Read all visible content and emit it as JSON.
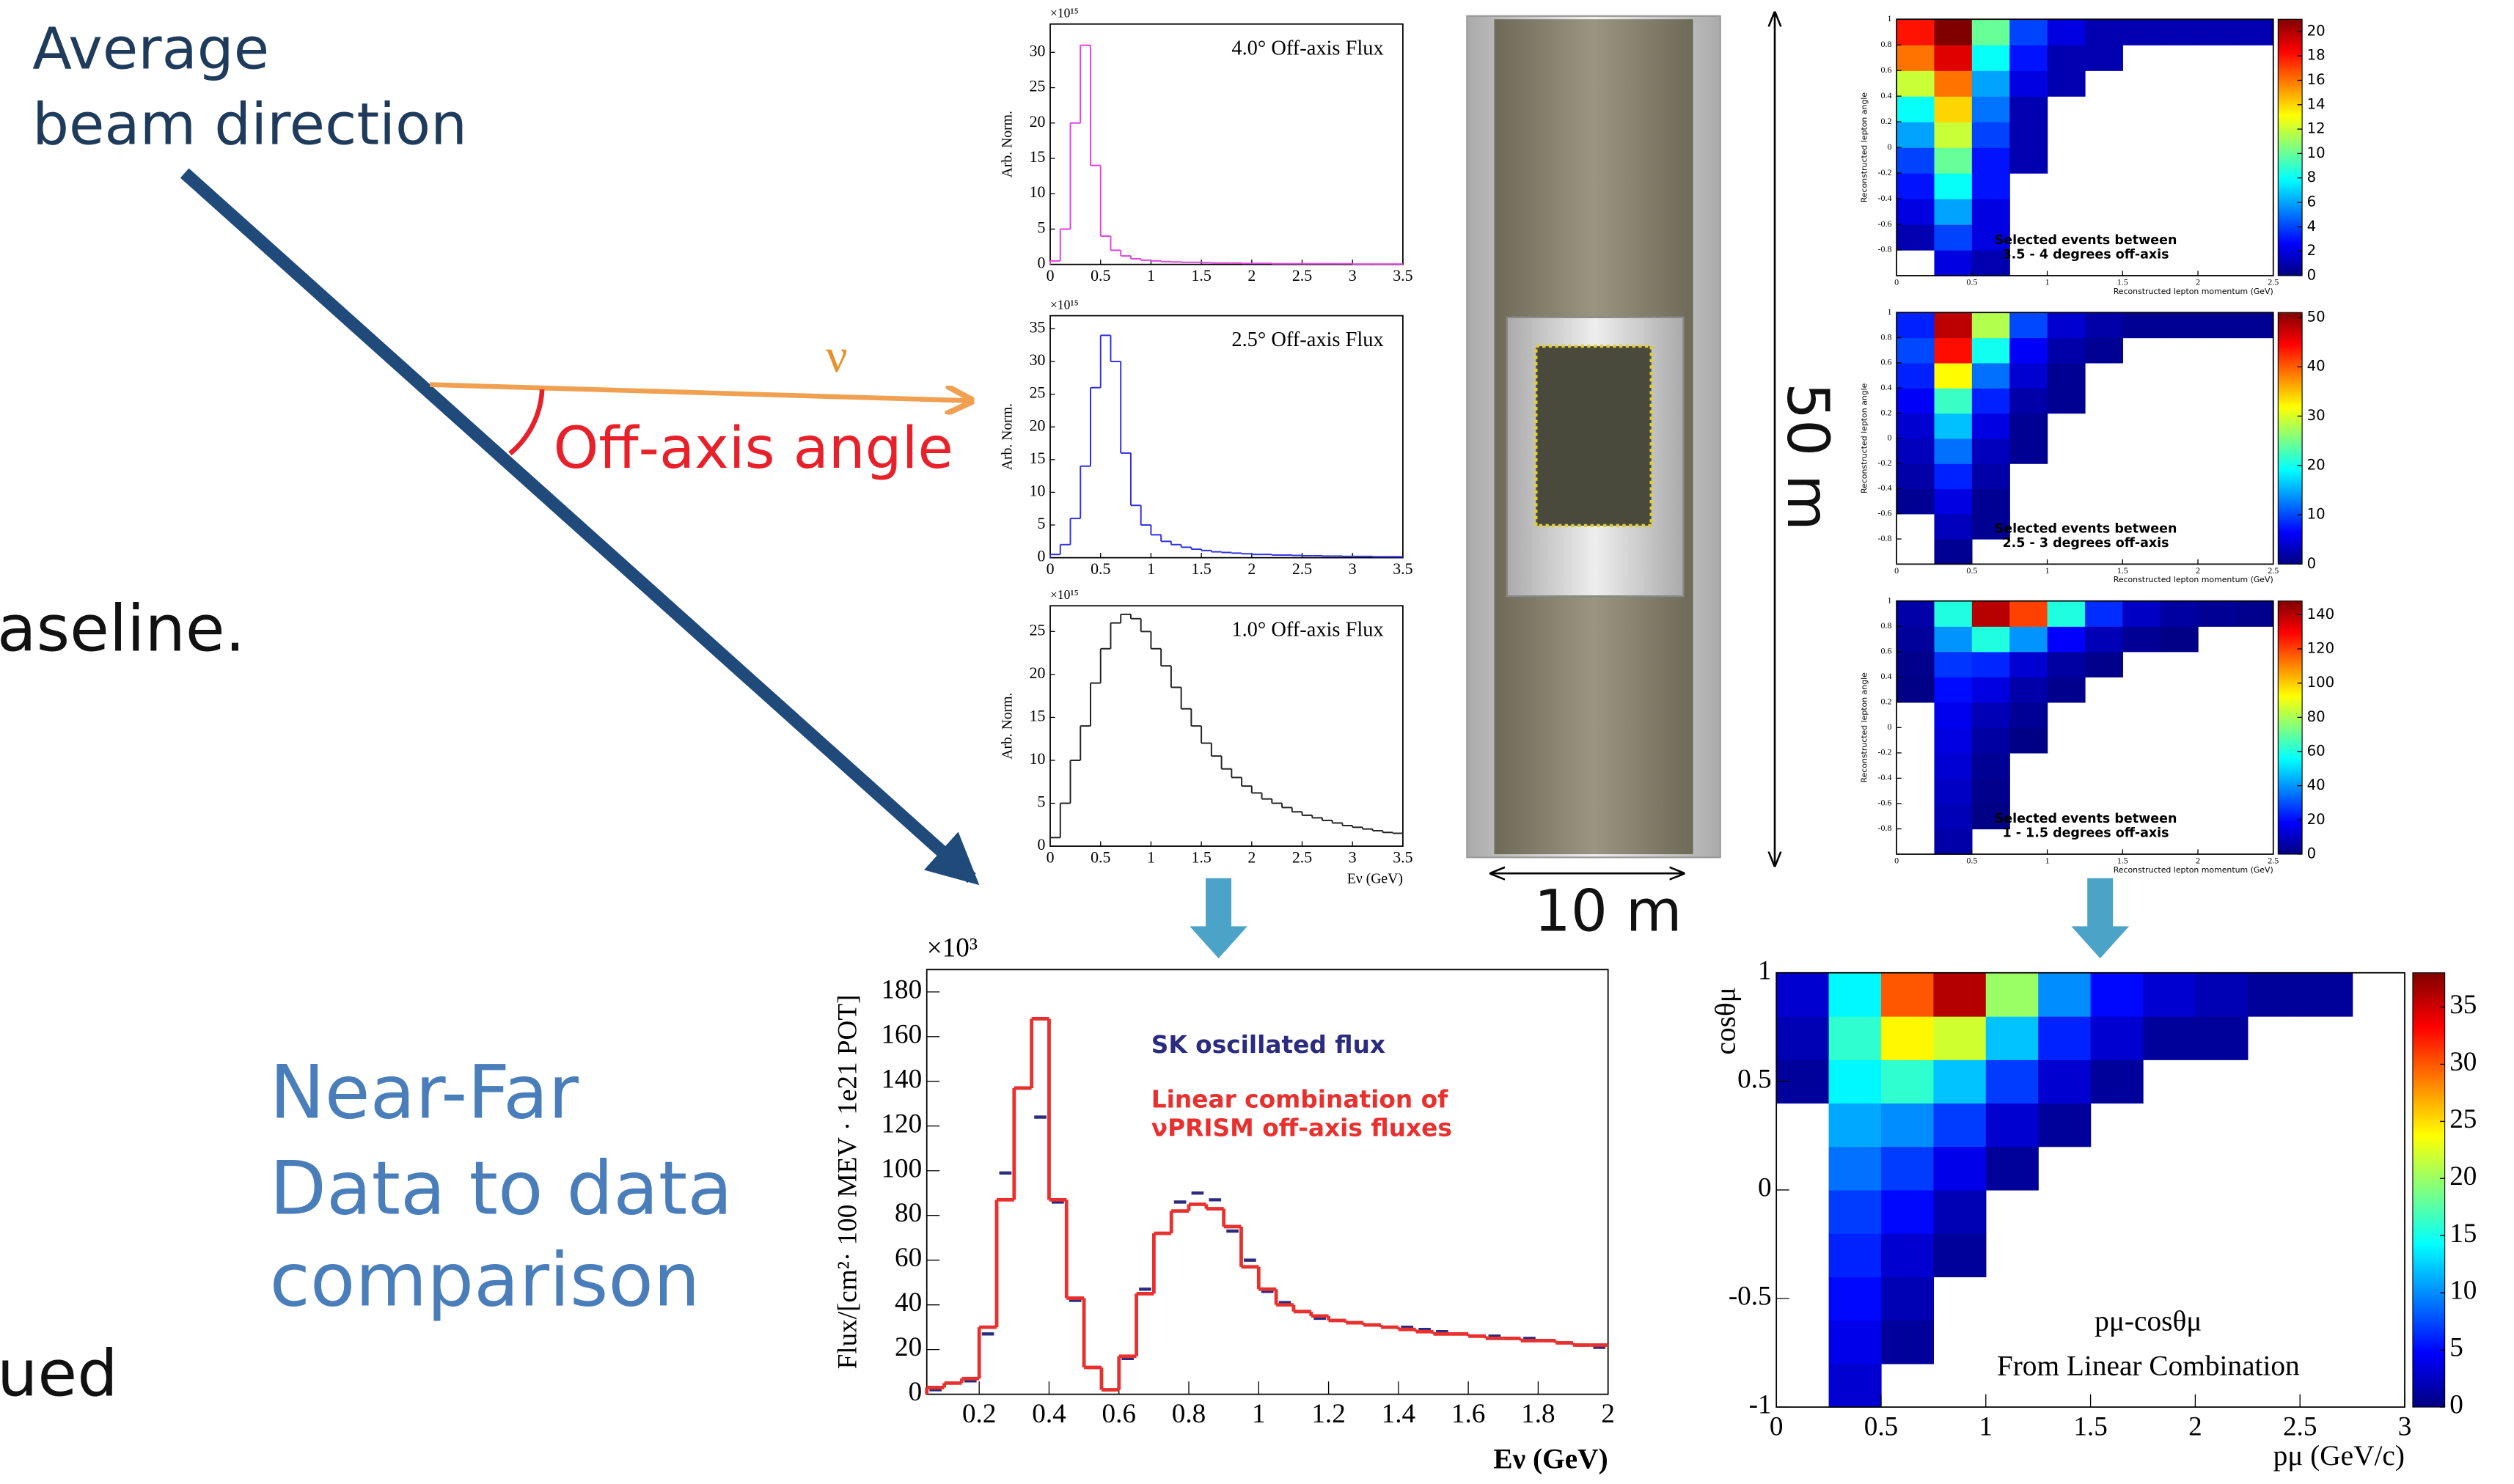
{
  "slide": {
    "beam_1": "Average",
    "beam_2": "beam direction",
    "nu": "ν",
    "angle": "Off-axis angle",
    "cut_1": "aseline.",
    "cut_2": "ued",
    "nearfar_1": "Near-Far",
    "nearfar_2": "Data to data",
    "nearfar_3": "comparison",
    "height": "50 m",
    "width": "10 m"
  },
  "chart_data": [
    {
      "type": "histogram",
      "multiplier": "×10¹⁵",
      "annotation": "4.0° Off-axis Flux",
      "y_label": "Arb. Norm.",
      "bins": [
        0,
        0.1,
        0.2,
        0.3,
        0.4,
        0.5,
        0.6,
        0.7,
        0.8,
        0.9,
        1,
        1.1,
        1.2,
        1.3,
        1.4,
        1.5,
        1.6,
        1.7,
        1.8,
        1.9,
        2,
        2.1,
        2.2,
        2.3,
        2.4,
        2.5,
        2.6,
        2.7,
        2.8,
        2.9,
        3,
        3.1,
        3.2,
        3.3,
        3.4,
        3.5
      ],
      "series": [
        {
          "style": "step",
          "color": "#e040e0",
          "values": [
            0.5,
            5,
            20,
            31,
            14,
            4,
            2,
            1.2,
            0.8,
            0.6,
            0.5,
            0.4,
            0.35,
            0.3,
            0.3,
            0.25,
            0.2,
            0.2,
            0.2,
            0.15,
            0.15,
            0.15,
            0.1,
            0.1,
            0.1,
            0.1,
            0.1,
            0.1,
            0.1,
            0.1,
            0.05,
            0.05,
            0.05,
            0.05,
            0.05
          ]
        }
      ],
      "xlim": [
        0,
        3.5
      ],
      "ylim": [
        0,
        34
      ],
      "xticks": [
        0,
        0.5,
        1,
        1.5,
        2,
        2.5,
        3,
        3.5
      ],
      "yticks": [
        0,
        5,
        10,
        15,
        20,
        25,
        30
      ]
    },
    {
      "type": "histogram",
      "multiplier": "×10¹⁵",
      "annotation": "2.5° Off-axis Flux",
      "y_label": "Arb. Norm.",
      "bins": [
        0,
        0.1,
        0.2,
        0.3,
        0.4,
        0.5,
        0.6,
        0.7,
        0.8,
        0.9,
        1,
        1.1,
        1.2,
        1.3,
        1.4,
        1.5,
        1.6,
        1.7,
        1.8,
        1.9,
        2,
        2.1,
        2.2,
        2.3,
        2.4,
        2.5,
        2.6,
        2.7,
        2.8,
        2.9,
        3,
        3.1,
        3.2,
        3.3,
        3.4,
        3.5
      ],
      "series": [
        {
          "style": "step",
          "color": "#3030e0",
          "values": [
            0.5,
            2,
            6,
            14,
            26,
            34,
            30,
            16,
            8,
            5,
            3.5,
            2.5,
            2,
            1.6,
            1.3,
            1.1,
            0.9,
            0.8,
            0.7,
            0.6,
            0.5,
            0.5,
            0.4,
            0.4,
            0.35,
            0.3,
            0.3,
            0.25,
            0.25,
            0.2,
            0.2,
            0.2,
            0.15,
            0.15,
            0.15
          ]
        }
      ],
      "xlim": [
        0,
        3.5
      ],
      "ylim": [
        0,
        37
      ],
      "xticks": [
        0,
        0.5,
        1,
        1.5,
        2,
        2.5,
        3,
        3.5
      ],
      "yticks": [
        0,
        5,
        10,
        15,
        20,
        25,
        30,
        35
      ]
    },
    {
      "type": "histogram",
      "multiplier": "×10¹⁵",
      "annotation": "1.0° Off-axis Flux",
      "y_label": "Arb. Norm.",
      "x_label": "Eν (GeV)",
      "bins": [
        0,
        0.1,
        0.2,
        0.3,
        0.4,
        0.5,
        0.6,
        0.7,
        0.8,
        0.9,
        1,
        1.1,
        1.2,
        1.3,
        1.4,
        1.5,
        1.6,
        1.7,
        1.8,
        1.9,
        2,
        2.1,
        2.2,
        2.3,
        2.4,
        2.5,
        2.6,
        2.7,
        2.8,
        2.9,
        3,
        3.1,
        3.2,
        3.3,
        3.4,
        3.5
      ],
      "series": [
        {
          "style": "step",
          "color": "#222222",
          "values": [
            1,
            5,
            10,
            14,
            19,
            23,
            26,
            27,
            26.5,
            25,
            23,
            21,
            18.5,
            16,
            14,
            12,
            10.5,
            9,
            8,
            7,
            6.2,
            5.5,
            5,
            4.5,
            4,
            3.6,
            3.3,
            3,
            2.7,
            2.4,
            2.2,
            2,
            1.8,
            1.6,
            1.5
          ]
        }
      ],
      "xlim": [
        0,
        3.5
      ],
      "ylim": [
        0,
        28
      ],
      "xticks": [
        0,
        0.5,
        1,
        1.5,
        2,
        2.5,
        3,
        3.5
      ],
      "yticks": [
        0,
        5,
        10,
        15,
        20,
        25
      ]
    },
    {
      "type": "histogram",
      "multiplier": "×10³",
      "y_label": "Flux/[cm²· 100 MEV · 1e21 POT]",
      "x_label": "Eν (GeV)",
      "bins": [
        0.05,
        0.1,
        0.15,
        0.2,
        0.25,
        0.3,
        0.35,
        0.4,
        0.45,
        0.5,
        0.55,
        0.6,
        0.65,
        0.7,
        0.75,
        0.8,
        0.85,
        0.9,
        0.95,
        1,
        1.05,
        1.1,
        1.15,
        1.2,
        1.25,
        1.3,
        1.35,
        1.4,
        1.45,
        1.5,
        1.55,
        1.6,
        1.65,
        1.7,
        1.75,
        1.8,
        1.85,
        1.9,
        1.95,
        2
      ],
      "series": [
        {
          "name": "SK oscillated flux",
          "style": "marker",
          "color": "#2b2b80",
          "values": [
            2,
            5,
            6,
            27,
            99,
            137,
            124,
            86,
            42,
            12,
            2,
            16,
            47,
            72,
            86,
            90,
            87,
            73,
            60,
            46,
            41,
            37,
            34,
            33,
            32,
            31,
            30,
            30,
            29,
            28,
            27,
            26,
            26,
            25,
            25,
            24,
            23,
            22,
            21
          ]
        },
        {
          "name": "Linear combination of νPRISM off-axis fluxes",
          "style": "step",
          "color": "#e8302e",
          "values": [
            3,
            5,
            7,
            30,
            87,
            137,
            168,
            87,
            43,
            12,
            2,
            17,
            45,
            72,
            82,
            85,
            83,
            75,
            57,
            47,
            40,
            37,
            35,
            33,
            32,
            31,
            30,
            29,
            28,
            27,
            27,
            26,
            25,
            25,
            24,
            24,
            23,
            22,
            22
          ]
        }
      ],
      "xlim": [
        0.05,
        2
      ],
      "ylim": [
        0,
        190
      ],
      "xticks": [
        0.2,
        0.4,
        0.6,
        0.8,
        1,
        1.2,
        1.4,
        1.6,
        1.8,
        2
      ],
      "yticks": [
        0,
        20,
        40,
        60,
        80,
        100,
        120,
        140,
        160,
        180
      ]
    },
    {
      "type": "heatmap",
      "y_label": "cosθμ",
      "x_label": "pμ (GeV/c)",
      "annotations": [
        "pμ-cosθμ",
        "From Linear Combination"
      ],
      "x_bins": [
        0,
        0.25,
        0.5,
        0.75,
        1,
        1.25,
        1.5,
        1.75,
        2,
        2.25,
        2.5,
        2.75,
        3
      ],
      "y_bins": [
        -1,
        -0.8,
        -0.6,
        -0.4,
        -0.2,
        0,
        0.2,
        0.4,
        0.6,
        0.8,
        1
      ],
      "z": [
        [
          0,
          3,
          0,
          0,
          0,
          0,
          0,
          0,
          0,
          0,
          0,
          0
        ],
        [
          0,
          4,
          1,
          0,
          0,
          0,
          0,
          0,
          0,
          0,
          0,
          0
        ],
        [
          0,
          5,
          2,
          0,
          0,
          0,
          0,
          0,
          0,
          0,
          0,
          0
        ],
        [
          0,
          6,
          3,
          1,
          0,
          0,
          0,
          0,
          0,
          0,
          0,
          0
        ],
        [
          0,
          7,
          5,
          2,
          0,
          0,
          0,
          0,
          0,
          0,
          0,
          0
        ],
        [
          0,
          9,
          7,
          4,
          1,
          0,
          0,
          0,
          0,
          0,
          0,
          0
        ],
        [
          0,
          11,
          10,
          7,
          3,
          1,
          0,
          0,
          0,
          0,
          0,
          0
        ],
        [
          1,
          14,
          16,
          12,
          7,
          3,
          1,
          0,
          0,
          0,
          0,
          0
        ],
        [
          2,
          16,
          24,
          22,
          12,
          6,
          3,
          1,
          1,
          0,
          0,
          0
        ],
        [
          3,
          14,
          30,
          36,
          20,
          10,
          5,
          3,
          2,
          1,
          1,
          0
        ]
      ],
      "xlim": [
        0,
        3
      ],
      "ylim": [
        -1,
        1
      ],
      "zlim": [
        0,
        38
      ],
      "xticks": [
        0,
        0.5,
        1,
        1.5,
        2,
        2.5,
        3
      ],
      "yticks": [
        -1,
        -0.5,
        0,
        0.5,
        1
      ],
      "zticks": [
        0,
        5,
        10,
        15,
        20,
        25,
        30,
        35
      ]
    },
    {
      "type": "heatmap",
      "y_label": "Reconstructed lepton angle",
      "x_label": "Reconstructed lepton momentum (GeV)",
      "annotations": [
        "Selected events between",
        "3.5 - 4 degrees off-axis"
      ],
      "x_bins": [
        0,
        0.25,
        0.5,
        0.75,
        1,
        1.25,
        1.5,
        1.75,
        2,
        2.25,
        2.5
      ],
      "y_bins": [
        -1,
        -0.8,
        -0.6,
        -0.4,
        -0.2,
        0,
        0.2,
        0.4,
        0.6,
        0.8,
        1
      ],
      "z": [
        [
          0,
          2,
          1,
          0,
          0,
          0,
          0,
          0,
          0,
          0
        ],
        [
          1,
          4,
          2,
          0,
          0,
          0,
          0,
          0,
          0,
          0
        ],
        [
          2,
          6,
          2,
          0,
          0,
          0,
          0,
          0,
          0,
          0
        ],
        [
          3,
          8,
          3,
          0,
          0,
          0,
          0,
          0,
          0,
          0
        ],
        [
          4,
          10,
          3,
          1,
          0,
          0,
          0,
          0,
          0,
          0
        ],
        [
          6,
          12,
          4,
          1,
          0,
          0,
          0,
          0,
          0,
          0
        ],
        [
          8,
          14,
          5,
          1,
          0,
          0,
          0,
          0,
          0,
          0
        ],
        [
          12,
          16,
          6,
          2,
          1,
          0,
          0,
          0,
          0,
          0
        ],
        [
          16,
          19,
          8,
          3,
          1,
          1,
          0,
          0,
          0,
          0
        ],
        [
          18,
          21,
          10,
          4,
          2,
          1,
          1,
          1,
          1,
          1
        ]
      ],
      "xlim": [
        0,
        2.5
      ],
      "ylim": [
        -1,
        1
      ],
      "zlim": [
        0,
        21
      ],
      "xticks": [
        0,
        0.5,
        1,
        1.5,
        2,
        2.5
      ],
      "yticks": [
        -0.8,
        -0.6,
        -0.4,
        -0.2,
        0,
        0.2,
        0.4,
        0.6,
        0.8,
        1
      ],
      "zticks": [
        0,
        2,
        4,
        6,
        8,
        10,
        12,
        14,
        16,
        18,
        20
      ]
    },
    {
      "type": "heatmap",
      "y_label": "Reconstructed lepton angle",
      "x_label": "Reconstructed lepton momentum (GeV)",
      "annotations": [
        "Selected events between",
        "2.5 - 3 degrees off-axis"
      ],
      "x_bins": [
        0,
        0.25,
        0.5,
        0.75,
        1,
        1.25,
        1.5,
        1.75,
        2,
        2.25,
        2.5
      ],
      "y_bins": [
        -1,
        -0.8,
        -0.6,
        -0.4,
        -0.2,
        0,
        0.2,
        0.4,
        0.6,
        0.8,
        1
      ],
      "z": [
        [
          0,
          1,
          0,
          0,
          0,
          0,
          0,
          0,
          0,
          0
        ],
        [
          0,
          3,
          1,
          0,
          0,
          0,
          0,
          0,
          0,
          0
        ],
        [
          1,
          5,
          1,
          0,
          0,
          0,
          0,
          0,
          0,
          0
        ],
        [
          2,
          8,
          2,
          0,
          0,
          0,
          0,
          0,
          0,
          0
        ],
        [
          3,
          12,
          3,
          1,
          0,
          0,
          0,
          0,
          0,
          0
        ],
        [
          4,
          16,
          5,
          1,
          0,
          0,
          0,
          0,
          0,
          0
        ],
        [
          6,
          22,
          8,
          2,
          1,
          0,
          0,
          0,
          0,
          0
        ],
        [
          8,
          32,
          12,
          4,
          1,
          0,
          0,
          0,
          0,
          0
        ],
        [
          10,
          44,
          20,
          6,
          2,
          1,
          0,
          0,
          0,
          0
        ],
        [
          8,
          48,
          28,
          10,
          4,
          2,
          1,
          1,
          1,
          1
        ]
      ],
      "xlim": [
        0,
        2.5
      ],
      "ylim": [
        -1,
        1
      ],
      "zlim": [
        0,
        51
      ],
      "xticks": [
        0,
        0.5,
        1,
        1.5,
        2,
        2.5
      ],
      "yticks": [
        -0.8,
        -0.6,
        -0.4,
        -0.2,
        0,
        0.2,
        0.4,
        0.6,
        0.8,
        1
      ],
      "zticks": [
        0,
        10,
        20,
        30,
        40,
        50
      ]
    },
    {
      "type": "heatmap",
      "y_label": "Reconstructed lepton angle",
      "x_label": "Reconstructed lepton momentum (GeV)",
      "annotations": [
        "Selected events between",
        "1 - 1.5 degrees off-axis"
      ],
      "x_bins": [
        0,
        0.25,
        0.5,
        0.75,
        1,
        1.25,
        1.5,
        1.75,
        2,
        2.25,
        2.5
      ],
      "y_bins": [
        -1,
        -0.8,
        -0.6,
        -0.4,
        -0.2,
        0,
        0.2,
        0.4,
        0.6,
        0.8,
        1
      ],
      "z": [
        [
          0,
          6,
          0,
          0,
          0,
          0,
          0,
          0,
          0,
          0
        ],
        [
          0,
          8,
          1,
          0,
          0,
          0,
          0,
          0,
          0,
          0
        ],
        [
          0,
          10,
          2,
          0,
          0,
          0,
          0,
          0,
          0,
          0
        ],
        [
          0,
          12,
          3,
          0,
          0,
          0,
          0,
          0,
          0,
          0
        ],
        [
          0,
          14,
          5,
          1,
          0,
          0,
          0,
          0,
          0,
          0
        ],
        [
          0,
          16,
          8,
          3,
          0,
          0,
          0,
          0,
          0,
          0
        ],
        [
          1,
          20,
          14,
          6,
          2,
          0,
          0,
          0,
          0,
          0
        ],
        [
          2,
          26,
          24,
          12,
          5,
          2,
          0,
          0,
          0,
          0
        ],
        [
          4,
          40,
          60,
          40,
          18,
          8,
          3,
          1,
          0,
          0
        ],
        [
          6,
          60,
          140,
          120,
          60,
          25,
          10,
          5,
          3,
          2
        ]
      ],
      "xlim": [
        0,
        2.5
      ],
      "ylim": [
        -1,
        1
      ],
      "zlim": [
        0,
        148
      ],
      "xticks": [
        0,
        0.5,
        1,
        1.5,
        2,
        2.5
      ],
      "yticks": [
        -0.8,
        -0.6,
        -0.4,
        -0.2,
        0,
        0.2,
        0.4,
        0.6,
        0.8,
        1
      ],
      "zticks": [
        0,
        20,
        40,
        60,
        80,
        100,
        120,
        140
      ]
    }
  ]
}
